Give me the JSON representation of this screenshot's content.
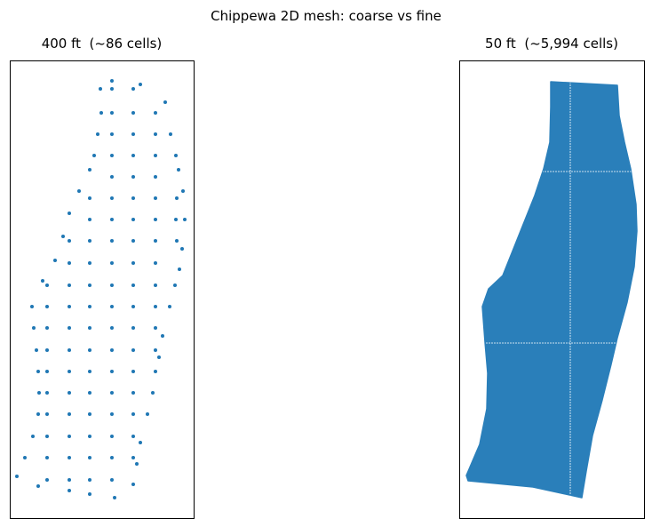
{
  "title": "Chippewa 2D mesh: coarse vs fine",
  "chart_data": [
    {
      "type": "scatter",
      "title": "400 ft  (~86 cells)",
      "color": "#1f77b4",
      "xlim": [
        0,
        207
      ],
      "ylim": [
        0,
        515
      ],
      "x": [
        115,
        147,
        102,
        115,
        139,
        175,
        103,
        115,
        139,
        164,
        99,
        115,
        139,
        164,
        181,
        95,
        115,
        139,
        164,
        187,
        90,
        190,
        115,
        139,
        164,
        78,
        195,
        90,
        115,
        139,
        164,
        188,
        67,
        90,
        115,
        139,
        164,
        187,
        197,
        60,
        67,
        90,
        115,
        139,
        164,
        188,
        194,
        51,
        67,
        90,
        115,
        139,
        164,
        191,
        37,
        42,
        67,
        90,
        115,
        139,
        164,
        186,
        25,
        42,
        67,
        90,
        115,
        139,
        164,
        180,
        27,
        42,
        67,
        90,
        115,
        139,
        164,
        172,
        30,
        42,
        67,
        90,
        115,
        139,
        164,
        168,
        32,
        42,
        67,
        90,
        115,
        139,
        164,
        33,
        42,
        67,
        90,
        115,
        139,
        161,
        32,
        42,
        67,
        90,
        115,
        139,
        155,
        26,
        42,
        67,
        90,
        115,
        139,
        147,
        17,
        42,
        67,
        90,
        115,
        139,
        143,
        8,
        42,
        67,
        90,
        115,
        139,
        32,
        67,
        90,
        118
      ],
      "y": [
        492,
        488,
        483,
        483,
        483,
        468,
        456,
        456,
        456,
        456,
        432,
        432,
        432,
        432,
        432,
        408,
        408,
        408,
        408,
        408,
        392,
        392,
        384,
        384,
        384,
        368,
        368,
        360,
        360,
        360,
        360,
        360,
        343,
        336,
        336,
        336,
        336,
        336,
        336,
        317,
        312,
        312,
        312,
        312,
        312,
        312,
        303,
        290,
        287,
        287,
        287,
        287,
        287,
        280,
        267,
        262,
        262,
        262,
        262,
        262,
        262,
        262,
        238,
        238,
        238,
        238,
        238,
        238,
        238,
        238,
        214,
        214,
        214,
        214,
        214,
        214,
        214,
        205,
        189,
        189,
        189,
        189,
        189,
        189,
        189,
        181,
        165,
        165,
        165,
        165,
        165,
        165,
        165,
        141,
        141,
        141,
        141,
        141,
        141,
        141,
        117,
        117,
        117,
        117,
        117,
        117,
        117,
        92,
        92,
        92,
        92,
        92,
        92,
        85,
        68,
        68,
        68,
        68,
        68,
        68,
        61,
        47,
        43,
        43,
        43,
        43,
        38,
        36,
        31,
        27,
        23
      ]
    },
    {
      "type": "polygon",
      "title": "50 ft  (~5,994 cells)",
      "color": "#2a7fba",
      "xlim": [
        0,
        208
      ],
      "ylim": [
        0,
        515
      ],
      "x": [
        103,
        178,
        180,
        186,
        193,
        199,
        200,
        197,
        189,
        178,
        171,
        161,
        150,
        143,
        138,
        83,
        10,
        8,
        23,
        31,
        32,
        29,
        26,
        33,
        49,
        61,
        73,
        85,
        95,
        102,
        103
      ],
      "y": [
        491,
        487,
        453,
        423,
        393,
        353,
        323,
        283,
        243,
        203,
        173,
        133,
        93,
        53,
        23,
        35,
        42,
        48,
        83,
        123,
        163,
        198,
        238,
        258,
        273,
        303,
        333,
        363,
        393,
        423,
        463
      ]
    }
  ]
}
